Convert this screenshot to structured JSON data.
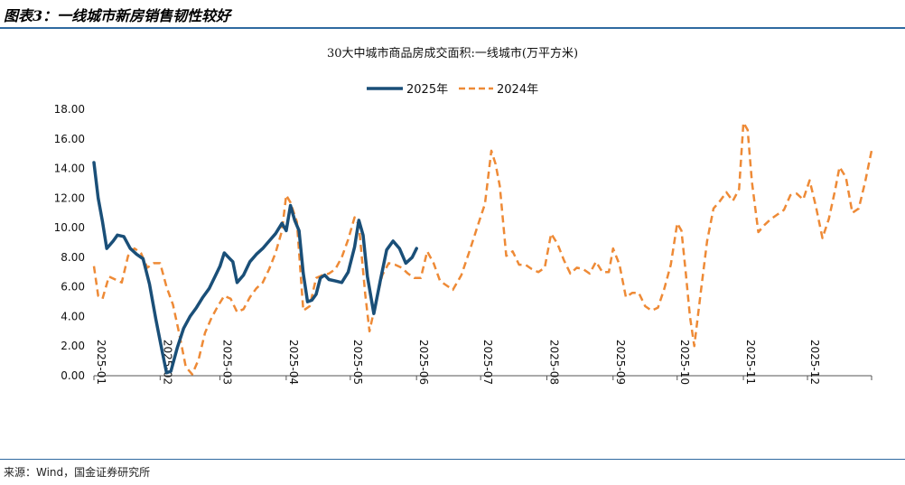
{
  "figure": {
    "title": "图表3：一线城市新房销售韧性较好",
    "source": "来源：Wind，国金证券研究所"
  },
  "colors": {
    "series_2025": "#1a4f78",
    "series_2024": "#ee8a36",
    "rule": "#2f6aa0"
  },
  "chart_data": {
    "type": "line",
    "title": "30大中城市商品房成交面积:一线城市(万平方米)",
    "xlabel": "",
    "ylabel": "",
    "ylim": [
      0,
      18
    ],
    "yticks": [
      "0.00",
      "2.00",
      "4.00",
      "6.00",
      "8.00",
      "10.00",
      "12.00",
      "14.00",
      "16.00",
      "18.00"
    ],
    "xticks": [
      "2025-01",
      "2025-02",
      "2025-03",
      "2025-04",
      "2025-05",
      "2025-06",
      "2025-07",
      "2025-08",
      "2025-09",
      "2025-10",
      "2025-11",
      "2025-12"
    ],
    "legend": "top-center",
    "grid": false,
    "series": [
      {
        "name": "2025年",
        "style": "solid",
        "points": [
          [
            "2025-01-01",
            14.4
          ],
          [
            "2025-01-03",
            12.0
          ],
          [
            "2025-01-05",
            10.4
          ],
          [
            "2025-01-07",
            8.6
          ],
          [
            "2025-01-10",
            9.1
          ],
          [
            "2025-01-12",
            9.5
          ],
          [
            "2025-01-15",
            9.4
          ],
          [
            "2025-01-18",
            8.6
          ],
          [
            "2025-01-21",
            8.2
          ],
          [
            "2025-01-24",
            7.9
          ],
          [
            "2025-01-27",
            6.2
          ],
          [
            "2025-01-30",
            3.8
          ],
          [
            "2025-02-02",
            1.6
          ],
          [
            "2025-02-04",
            0.2
          ],
          [
            "2025-02-06",
            0.3
          ],
          [
            "2025-02-09",
            1.9
          ],
          [
            "2025-02-12",
            3.2
          ],
          [
            "2025-02-15",
            4.0
          ],
          [
            "2025-02-18",
            4.6
          ],
          [
            "2025-02-21",
            5.3
          ],
          [
            "2025-02-24",
            5.9
          ],
          [
            "2025-02-27",
            6.8
          ],
          [
            "2025-03-01",
            7.4
          ],
          [
            "2025-03-03",
            8.3
          ],
          [
            "2025-03-05",
            8.0
          ],
          [
            "2025-03-07",
            7.7
          ],
          [
            "2025-03-09",
            6.3
          ],
          [
            "2025-03-12",
            6.8
          ],
          [
            "2025-03-15",
            7.7
          ],
          [
            "2025-03-18",
            8.2
          ],
          [
            "2025-03-21",
            8.6
          ],
          [
            "2025-03-24",
            9.1
          ],
          [
            "2025-03-27",
            9.6
          ],
          [
            "2025-03-30",
            10.3
          ],
          [
            "2025-04-01",
            9.8
          ],
          [
            "2025-04-03",
            11.5
          ],
          [
            "2025-04-05",
            10.5
          ],
          [
            "2025-04-07",
            9.8
          ],
          [
            "2025-04-09",
            6.9
          ],
          [
            "2025-04-11",
            5.0
          ],
          [
            "2025-04-13",
            5.1
          ],
          [
            "2025-04-15",
            5.5
          ],
          [
            "2025-04-17",
            6.6
          ],
          [
            "2025-04-19",
            6.8
          ],
          [
            "2025-04-21",
            6.5
          ],
          [
            "2025-04-24",
            6.4
          ],
          [
            "2025-04-27",
            6.3
          ],
          [
            "2025-04-30",
            7.0
          ],
          [
            "2025-05-03",
            8.7
          ],
          [
            "2025-05-05",
            10.5
          ],
          [
            "2025-05-07",
            9.5
          ],
          [
            "2025-05-09",
            6.7
          ],
          [
            "2025-05-12",
            4.2
          ],
          [
            "2025-05-15",
            6.4
          ],
          [
            "2025-05-18",
            8.5
          ],
          [
            "2025-05-21",
            9.1
          ],
          [
            "2025-05-24",
            8.6
          ],
          [
            "2025-05-27",
            7.6
          ],
          [
            "2025-05-30",
            8.0
          ],
          [
            "2025-06-01",
            8.6
          ]
        ]
      },
      {
        "name": "2024年",
        "style": "dashed",
        "points": [
          [
            "2025-01-01",
            7.4
          ],
          [
            "2025-01-03",
            5.4
          ],
          [
            "2025-01-05",
            5.2
          ],
          [
            "2025-01-08",
            6.7
          ],
          [
            "2025-01-11",
            6.5
          ],
          [
            "2025-01-14",
            6.3
          ],
          [
            "2025-01-17",
            8.1
          ],
          [
            "2025-01-20",
            8.6
          ],
          [
            "2025-01-23",
            8.3
          ],
          [
            "2025-01-26",
            7.3
          ],
          [
            "2025-01-29",
            7.6
          ],
          [
            "2025-02-01",
            7.6
          ],
          [
            "2025-02-04",
            6.0
          ],
          [
            "2025-02-07",
            4.8
          ],
          [
            "2025-02-10",
            2.8
          ],
          [
            "2025-02-13",
            0.6
          ],
          [
            "2025-02-16",
            0.1
          ],
          [
            "2025-02-19",
            1.1
          ],
          [
            "2025-02-22",
            2.9
          ],
          [
            "2025-02-25",
            3.9
          ],
          [
            "2025-02-28",
            4.7
          ],
          [
            "2025-03-03",
            5.4
          ],
          [
            "2025-03-06",
            5.2
          ],
          [
            "2025-03-09",
            4.3
          ],
          [
            "2025-03-12",
            4.5
          ],
          [
            "2025-03-15",
            5.3
          ],
          [
            "2025-03-18",
            5.9
          ],
          [
            "2025-03-21",
            6.3
          ],
          [
            "2025-03-24",
            7.2
          ],
          [
            "2025-03-27",
            8.3
          ],
          [
            "2025-03-30",
            9.8
          ],
          [
            "2025-04-01",
            12.2
          ],
          [
            "2025-04-03",
            11.7
          ],
          [
            "2025-04-06",
            10.4
          ],
          [
            "2025-04-09",
            4.4
          ],
          [
            "2025-04-12",
            4.7
          ],
          [
            "2025-04-15",
            6.6
          ],
          [
            "2025-04-18",
            6.8
          ],
          [
            "2025-04-21",
            6.9
          ],
          [
            "2025-04-24",
            7.2
          ],
          [
            "2025-04-27",
            8.0
          ],
          [
            "2025-04-30",
            9.2
          ],
          [
            "2025-05-03",
            10.7
          ],
          [
            "2025-05-05",
            10.2
          ],
          [
            "2025-05-08",
            5.5
          ],
          [
            "2025-05-10",
            3.0
          ],
          [
            "2025-05-13",
            5.0
          ],
          [
            "2025-05-16",
            6.8
          ],
          [
            "2025-05-19",
            7.6
          ],
          [
            "2025-05-22",
            7.5
          ],
          [
            "2025-05-25",
            7.3
          ],
          [
            "2025-05-28",
            6.9
          ],
          [
            "2025-05-31",
            6.6
          ],
          [
            "2025-06-03",
            6.6
          ],
          [
            "2025-06-06",
            8.4
          ],
          [
            "2025-06-09",
            7.6
          ],
          [
            "2025-06-12",
            6.4
          ],
          [
            "2025-06-15",
            6.1
          ],
          [
            "2025-06-18",
            5.8
          ],
          [
            "2025-06-22",
            6.8
          ],
          [
            "2025-06-26",
            8.5
          ],
          [
            "2025-06-30",
            10.3
          ],
          [
            "2025-07-03",
            11.6
          ],
          [
            "2025-07-06",
            15.2
          ],
          [
            "2025-07-08",
            14.3
          ],
          [
            "2025-07-10",
            12.8
          ],
          [
            "2025-07-13",
            8.1
          ],
          [
            "2025-07-16",
            8.4
          ],
          [
            "2025-07-19",
            7.5
          ],
          [
            "2025-07-22",
            7.5
          ],
          [
            "2025-07-25",
            7.2
          ],
          [
            "2025-07-28",
            7.0
          ],
          [
            "2025-07-31",
            7.3
          ],
          [
            "2025-08-03",
            9.6
          ],
          [
            "2025-08-06",
            8.9
          ],
          [
            "2025-08-09",
            7.8
          ],
          [
            "2025-08-12",
            6.9
          ],
          [
            "2025-08-15",
            7.3
          ],
          [
            "2025-08-18",
            7.2
          ],
          [
            "2025-08-21",
            6.9
          ],
          [
            "2025-08-24",
            7.7
          ],
          [
            "2025-08-27",
            7.0
          ],
          [
            "2025-08-30",
            7.0
          ],
          [
            "2025-09-01",
            8.6
          ],
          [
            "2025-09-04",
            7.5
          ],
          [
            "2025-09-07",
            5.3
          ],
          [
            "2025-09-10",
            5.6
          ],
          [
            "2025-09-13",
            5.6
          ],
          [
            "2025-09-16",
            4.7
          ],
          [
            "2025-09-19",
            4.4
          ],
          [
            "2025-09-22",
            4.6
          ],
          [
            "2025-09-25",
            5.9
          ],
          [
            "2025-09-28",
            7.5
          ],
          [
            "2025-10-01",
            10.3
          ],
          [
            "2025-10-03",
            9.8
          ],
          [
            "2025-10-05",
            7.0
          ],
          [
            "2025-10-07",
            4.0
          ],
          [
            "2025-10-09",
            2.0
          ],
          [
            "2025-10-12",
            5.6
          ],
          [
            "2025-10-15",
            9.1
          ],
          [
            "2025-10-18",
            11.3
          ],
          [
            "2025-10-21",
            11.8
          ],
          [
            "2025-10-24",
            12.4
          ],
          [
            "2025-10-27",
            11.8
          ],
          [
            "2025-10-30",
            12.6
          ],
          [
            "2025-11-01",
            17.1
          ],
          [
            "2025-11-03",
            16.6
          ],
          [
            "2025-11-05",
            13.1
          ],
          [
            "2025-11-08",
            9.7
          ],
          [
            "2025-11-11",
            10.2
          ],
          [
            "2025-11-14",
            10.6
          ],
          [
            "2025-11-17",
            10.9
          ],
          [
            "2025-11-20",
            11.2
          ],
          [
            "2025-11-23",
            12.2
          ],
          [
            "2025-11-26",
            12.3
          ],
          [
            "2025-11-29",
            11.9
          ],
          [
            "2025-12-02",
            13.2
          ],
          [
            "2025-12-05",
            11.4
          ],
          [
            "2025-12-08",
            9.3
          ],
          [
            "2025-12-11",
            10.6
          ],
          [
            "2025-12-14",
            12.6
          ],
          [
            "2025-12-16",
            14.1
          ],
          [
            "2025-12-19",
            13.4
          ],
          [
            "2025-12-22",
            11.0
          ],
          [
            "2025-12-25",
            11.3
          ],
          [
            "2025-12-28",
            13.1
          ],
          [
            "2025-12-30",
            14.5
          ],
          [
            "2025-12-31",
            15.2
          ]
        ]
      }
    ]
  }
}
